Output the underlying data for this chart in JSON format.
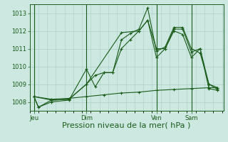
{
  "xlabel": "Pression niveau de la mer( hPa )",
  "ylim": [
    1007.5,
    1013.5
  ],
  "yticks": [
    1008,
    1009,
    1010,
    1011,
    1012,
    1013
  ],
  "bg_color": "#cce8e0",
  "grid_color": "#aacfc8",
  "line_color": "#1a5c1a",
  "day_labels": [
    "Jeu",
    "Dim",
    "Ven",
    "Sam"
  ],
  "series": [
    [
      0,
      1008.3,
      3,
      1007.7,
      12,
      1008.0,
      24,
      1008.1,
      36,
      1009.85,
      42,
      1008.85,
      48,
      1009.65,
      54,
      1009.65,
      60,
      1011.5,
      66,
      1011.85,
      72,
      1012.1,
      78,
      1013.3,
      84,
      1010.85,
      90,
      1011.1,
      96,
      1012.2,
      102,
      1012.2,
      108,
      1011.0,
      114,
      1010.75,
      120,
      1009.0,
      126,
      1008.7
    ],
    [
      0,
      1008.3,
      3,
      1007.7,
      12,
      1008.1,
      24,
      1008.15,
      36,
      1009.0,
      42,
      1009.5,
      48,
      1009.65,
      54,
      1009.65,
      60,
      1011.0,
      66,
      1011.5,
      72,
      1012.0,
      78,
      1012.6,
      84,
      1011.0,
      90,
      1011.0,
      96,
      1012.0,
      102,
      1011.8,
      108,
      1010.5,
      114,
      1011.0,
      120,
      1009.0,
      126,
      1008.8
    ],
    [
      0,
      1008.3,
      12,
      1008.1,
      24,
      1008.15,
      36,
      1009.0,
      60,
      1011.9,
      72,
      1012.0,
      78,
      1012.6,
      84,
      1010.5,
      90,
      1011.0,
      96,
      1012.1,
      102,
      1012.1,
      108,
      1010.8,
      114,
      1011.0,
      120,
      1008.75,
      126,
      1008.65
    ],
    [
      0,
      1008.3,
      12,
      1008.15,
      24,
      1008.2,
      36,
      1008.3,
      48,
      1008.4,
      60,
      1008.5,
      72,
      1008.55,
      84,
      1008.65,
      96,
      1008.7,
      108,
      1008.75,
      120,
      1008.8,
      126,
      1008.8
    ]
  ],
  "xlim": [
    -3,
    130
  ],
  "xlabel_fontsize": 8,
  "ytick_fontsize": 6,
  "xtick_fontsize": 6
}
